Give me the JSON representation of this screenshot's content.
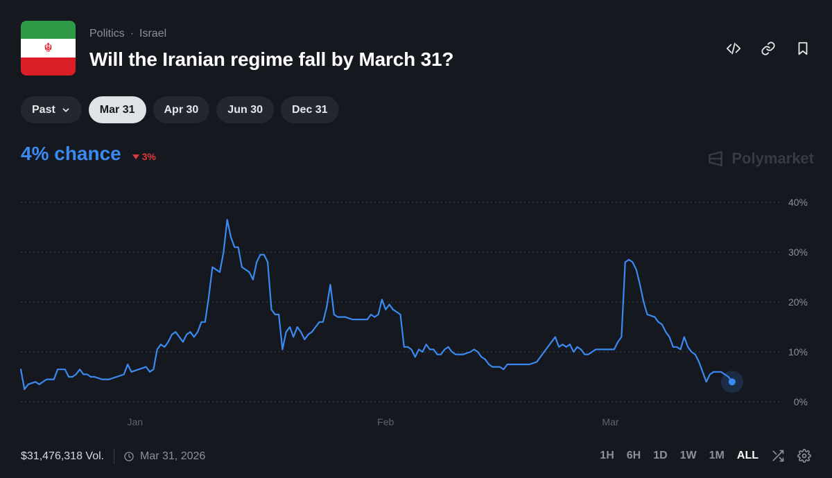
{
  "header": {
    "category": "Politics",
    "separator": "·",
    "subcategory": "Israel",
    "title": "Will the Iranian regime fall by March 31?",
    "flag_colors": {
      "green": "#2f9a47",
      "white": "#ffffff",
      "red": "#da1f26"
    },
    "actions": [
      {
        "icon": "code-icon"
      },
      {
        "icon": "link-icon"
      },
      {
        "icon": "bookmark-icon"
      }
    ]
  },
  "tabs": [
    {
      "label": "Past",
      "has_dropdown": true
    },
    {
      "label": "Mar 31",
      "active": true
    },
    {
      "label": "Apr 30"
    },
    {
      "label": "Jun 30"
    },
    {
      "label": "Dec 31"
    }
  ],
  "probability": {
    "value": "4% chance",
    "delta": "3%",
    "delta_direction": "down",
    "value_color": "#3b8af2",
    "delta_color": "#e0393e"
  },
  "brand": {
    "name": "Polymarket"
  },
  "chart_data": {
    "type": "line",
    "series": [
      {
        "color": "#3b8af2",
        "points": [
          [
            0,
            6.5
          ],
          [
            0.5,
            2.5
          ],
          [
            1,
            3.5
          ],
          [
            2,
            4
          ],
          [
            2.5,
            3.5
          ],
          [
            3.5,
            4.5
          ],
          [
            4.5,
            4.5
          ],
          [
            5,
            6.5
          ],
          [
            6,
            6.5
          ],
          [
            6.5,
            5
          ],
          [
            7,
            5
          ],
          [
            7.5,
            5.5
          ],
          [
            8,
            6.5
          ],
          [
            8.5,
            5.5
          ],
          [
            9,
            5.5
          ],
          [
            9.5,
            5
          ],
          [
            10,
            5
          ],
          [
            11,
            4.5
          ],
          [
            12,
            4.5
          ],
          [
            13,
            5
          ],
          [
            14,
            5.5
          ],
          [
            14.5,
            7.5
          ],
          [
            15,
            6
          ],
          [
            16,
            6.5
          ],
          [
            17,
            7
          ],
          [
            17.5,
            6
          ],
          [
            18,
            6.5
          ],
          [
            18.5,
            10.5
          ],
          [
            19,
            11.5
          ],
          [
            19.5,
            11
          ],
          [
            20,
            12
          ],
          [
            20.5,
            13.5
          ],
          [
            21,
            14
          ],
          [
            21.5,
            13
          ],
          [
            22,
            12
          ],
          [
            22.5,
            13.5
          ],
          [
            23,
            14
          ],
          [
            23.5,
            13
          ],
          [
            24,
            14
          ],
          [
            24.5,
            16
          ],
          [
            25,
            16
          ],
          [
            25.5,
            21
          ],
          [
            26,
            27
          ],
          [
            26.5,
            26.5
          ],
          [
            27,
            26
          ],
          [
            27.5,
            30
          ],
          [
            28,
            36.5
          ],
          [
            28.5,
            33
          ],
          [
            29,
            31
          ],
          [
            29.5,
            31
          ],
          [
            30,
            27
          ],
          [
            30.5,
            26.5
          ],
          [
            31,
            26
          ],
          [
            31.5,
            24.5
          ],
          [
            32,
            28
          ],
          [
            32.5,
            29.5
          ],
          [
            33,
            29.5
          ],
          [
            33.5,
            28
          ],
          [
            34,
            18.5
          ],
          [
            34.5,
            17.5
          ],
          [
            35,
            17.5
          ],
          [
            35.5,
            10.5
          ],
          [
            36,
            14
          ],
          [
            36.5,
            15
          ],
          [
            37,
            13
          ],
          [
            37.5,
            15
          ],
          [
            38,
            14
          ],
          [
            38.5,
            12.5
          ],
          [
            39,
            13.5
          ],
          [
            39.5,
            14
          ],
          [
            40,
            15
          ],
          [
            40.5,
            16
          ],
          [
            41,
            16
          ],
          [
            41.5,
            19
          ],
          [
            42,
            23.5
          ],
          [
            42.5,
            17.5
          ],
          [
            43,
            17
          ],
          [
            44,
            17
          ],
          [
            45,
            16.5
          ],
          [
            46,
            16.5
          ],
          [
            47,
            16.5
          ],
          [
            47.5,
            17.5
          ],
          [
            48,
            17
          ],
          [
            48.5,
            17.5
          ],
          [
            49,
            20.5
          ],
          [
            49.5,
            18.5
          ],
          [
            50,
            19.5
          ],
          [
            50.5,
            18.5
          ],
          [
            51,
            18
          ],
          [
            51.5,
            17.5
          ],
          [
            52,
            11
          ],
          [
            52.5,
            11
          ],
          [
            53,
            10.5
          ],
          [
            53.5,
            9
          ],
          [
            54,
            10.5
          ],
          [
            54.5,
            10
          ],
          [
            55,
            11.5
          ],
          [
            55.5,
            10.5
          ],
          [
            56,
            10.5
          ],
          [
            56.5,
            9.5
          ],
          [
            57,
            9.5
          ],
          [
            57.5,
            10.5
          ],
          [
            58,
            11
          ],
          [
            58.5,
            10
          ],
          [
            59,
            9.5
          ],
          [
            60,
            9.5
          ],
          [
            61,
            10
          ],
          [
            61.5,
            10.5
          ],
          [
            62,
            10
          ],
          [
            62.5,
            9
          ],
          [
            63,
            8.5
          ],
          [
            63.5,
            7.5
          ],
          [
            64,
            7
          ],
          [
            65,
            7
          ],
          [
            65.5,
            6.5
          ],
          [
            66,
            7.5
          ],
          [
            67,
            7.5
          ],
          [
            68,
            7.5
          ],
          [
            69,
            7.5
          ],
          [
            70,
            8
          ],
          [
            71,
            10
          ],
          [
            72,
            12
          ],
          [
            72.5,
            13
          ],
          [
            73,
            11
          ],
          [
            73.5,
            11.5
          ],
          [
            74,
            11
          ],
          [
            74.5,
            11.5
          ],
          [
            75,
            10
          ],
          [
            75.5,
            11
          ],
          [
            76,
            10.5
          ],
          [
            76.5,
            9.5
          ],
          [
            77,
            9.5
          ],
          [
            77.5,
            10
          ],
          [
            78,
            10.5
          ],
          [
            79,
            10.5
          ],
          [
            80,
            10.5
          ],
          [
            80.5,
            10.5
          ],
          [
            81,
            12
          ],
          [
            81.5,
            13
          ],
          [
            82,
            28
          ],
          [
            82.5,
            28.5
          ],
          [
            83,
            28
          ],
          [
            83.5,
            26.5
          ],
          [
            84,
            23.5
          ],
          [
            84.5,
            20
          ],
          [
            85,
            17.5
          ],
          [
            86,
            17
          ],
          [
            86.5,
            16
          ],
          [
            87,
            15.5
          ],
          [
            87.5,
            14
          ],
          [
            88,
            13
          ],
          [
            88.5,
            11
          ],
          [
            89,
            11
          ],
          [
            89.5,
            10.5
          ],
          [
            90,
            13
          ],
          [
            90.5,
            11
          ],
          [
            91,
            10
          ],
          [
            91.5,
            9.5
          ],
          [
            92,
            8
          ],
          [
            92.5,
            6
          ],
          [
            93,
            4
          ],
          [
            93.5,
            5.5
          ],
          [
            94,
            6
          ],
          [
            95,
            6
          ],
          [
            95.5,
            5.5
          ],
          [
            96,
            5
          ],
          [
            96.5,
            4
          ]
        ]
      }
    ],
    "x_tick_labels": [
      "Jan",
      "Feb",
      "Mar"
    ],
    "x_tick_positions": [
      15.5,
      49.5,
      80
    ],
    "xlim": [
      0,
      103
    ],
    "y_tick_labels": [
      "40%",
      "30%",
      "20%",
      "10%",
      "0%"
    ],
    "y_tick_values": [
      40,
      30,
      20,
      10,
      0
    ],
    "ylim": [
      0,
      40
    ],
    "grid": "dotted-horizontal",
    "end_marker_value": 4
  },
  "footer": {
    "volume": "$31,476,318 Vol.",
    "end_date": "Mar 31, 2026",
    "ranges": [
      "1H",
      "6H",
      "1D",
      "1W",
      "1M",
      "ALL"
    ],
    "active_range": "ALL"
  }
}
